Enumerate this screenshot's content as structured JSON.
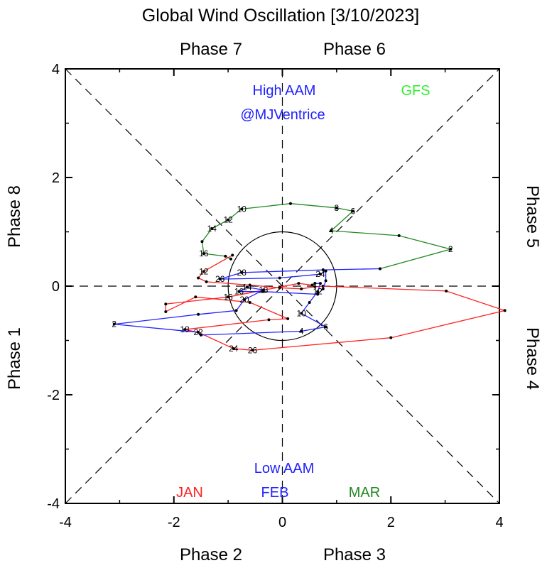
{
  "chart_data": {
    "type": "line",
    "title": "Global Wind Oscillation [3/10/2023]",
    "xlim": [
      -4,
      4
    ],
    "ylim": [
      -4,
      4
    ],
    "xticks": [
      -4,
      -2,
      0,
      2,
      4
    ],
    "yticks": [
      -4,
      -2,
      0,
      2,
      4
    ],
    "phase_labels": {
      "top_left": "Phase 7",
      "top_right": "Phase 6",
      "left_upper": "Phase 8",
      "left_lower": "Phase 1",
      "right_upper": "Phase 5",
      "right_lower": "Phase 4",
      "bottom_left": "Phase 2",
      "bottom_right": "Phase 3"
    },
    "annotations": {
      "high": "High AAM",
      "handle": "@MJVentrice",
      "low": "Low AAM",
      "model": "GFS",
      "model_color": "#33ee33"
    },
    "unit_circle_radius": 1,
    "series": [
      {
        "name": "JAN",
        "color": "#ff2222",
        "points": [
          [
            -0.92,
            0.57
          ],
          [
            -1.45,
            0.27
          ],
          [
            -1.55,
            0.15
          ],
          [
            -1.4,
            0.08
          ],
          [
            -0.6,
            0.02
          ],
          [
            -0.05,
            -0.03
          ],
          [
            0.35,
            -0.05
          ],
          [
            0.6,
            -0.01
          ],
          [
            0.75,
            0.0
          ],
          [
            3.02,
            -0.09
          ],
          [
            4.1,
            -0.45
          ],
          [
            2.0,
            -0.95
          ],
          [
            -0.55,
            -1.18
          ],
          [
            -0.9,
            -1.15
          ],
          [
            -1.55,
            -0.85
          ],
          [
            -1.8,
            -0.8
          ],
          [
            -0.25,
            -0.62
          ],
          [
            0.1,
            -0.6
          ],
          [
            -0.6,
            -0.3
          ],
          [
            -1.6,
            -0.2
          ],
          [
            -2.15,
            -0.47
          ],
          [
            -2.15,
            -0.33
          ],
          [
            -1.0,
            -0.2
          ],
          [
            0.3,
            0.05
          ],
          [
            0.55,
            0.02
          ],
          [
            0.6,
            0.05
          ]
        ],
        "labels": [
          {
            "text": "12",
            "index": 1
          },
          {
            "text": "16",
            "index": 22
          },
          {
            "text": "18",
            "index": 15
          },
          {
            "text": "22",
            "index": 14
          },
          {
            "text": "24",
            "index": 13
          },
          {
            "text": "26",
            "index": 12
          }
        ]
      },
      {
        "name": "FEB",
        "color": "#2222ff",
        "points": [
          [
            0.6,
            0.05
          ],
          [
            0.7,
            0.05
          ],
          [
            0.65,
            -0.1
          ],
          [
            0.5,
            -0.3
          ],
          [
            0.35,
            -0.5
          ],
          [
            0.8,
            -0.75
          ],
          [
            0.35,
            -0.83
          ],
          [
            -1.5,
            -0.9
          ],
          [
            -1.55,
            -0.85
          ],
          [
            -3.1,
            -0.7
          ],
          [
            -1.55,
            -0.52
          ],
          [
            -0.85,
            -0.45
          ],
          [
            -0.7,
            -0.25
          ],
          [
            -0.35,
            -0.07
          ],
          [
            -0.65,
            -0.02
          ],
          [
            -0.8,
            -0.1
          ],
          [
            -0.35,
            -0.1
          ],
          [
            0.65,
            -0.15
          ],
          [
            0.75,
            -0.05
          ],
          [
            0.8,
            0.1
          ],
          [
            0.8,
            0.28
          ],
          [
            0.7,
            0.22
          ],
          [
            -0.05,
            0.15
          ],
          [
            -1.15,
            0.13
          ],
          [
            -0.75,
            0.25
          ],
          [
            0.75,
            0.3
          ],
          [
            1.8,
            0.32
          ]
        ],
        "labels": [
          {
            "text": "2",
            "index": 9
          },
          {
            "text": "4",
            "index": 6
          },
          {
            "text": "6",
            "index": 5
          },
          {
            "text": "10",
            "index": 4
          },
          {
            "text": "12",
            "index": 2
          },
          {
            "text": "14",
            "index": 14
          },
          {
            "text": "16",
            "index": 15
          },
          {
            "text": "18",
            "index": 13
          },
          {
            "text": "20",
            "index": 12
          },
          {
            "text": "24",
            "index": 21
          },
          {
            "text": "26",
            "index": 23
          },
          {
            "text": "28",
            "index": 24
          }
        ]
      },
      {
        "name": "MAR",
        "color": "#228822",
        "points": [
          [
            1.8,
            0.32
          ],
          [
            3.1,
            0.68
          ],
          [
            2.15,
            0.93
          ],
          [
            0.9,
            1.02
          ],
          [
            1.3,
            1.38
          ],
          [
            1.0,
            1.44
          ],
          [
            0.15,
            1.52
          ],
          [
            -0.75,
            1.42
          ],
          [
            -1.0,
            1.22
          ],
          [
            -1.3,
            1.06
          ],
          [
            -1.48,
            0.82
          ],
          [
            -1.45,
            0.6
          ],
          [
            -1.05,
            0.55
          ],
          [
            -0.95,
            0.5
          ]
        ],
        "labels": [
          {
            "text": "2",
            "index": 1
          },
          {
            "text": "4",
            "index": 3
          },
          {
            "text": "6",
            "index": 4
          },
          {
            "text": "8",
            "index": 5
          },
          {
            "text": "10",
            "index": 7
          },
          {
            "text": "12",
            "index": 8
          },
          {
            "text": "14",
            "index": 9
          },
          {
            "text": "16",
            "index": 11
          }
        ]
      }
    ]
  }
}
